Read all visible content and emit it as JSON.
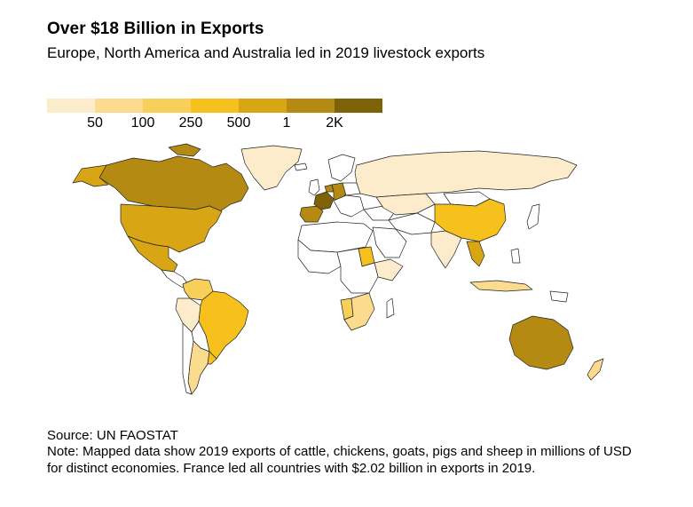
{
  "header": {
    "title": "Over $18 Billion in Exports",
    "subtitle": "Europe, North America and Australia led in 2019 livestock exports"
  },
  "legend": {
    "colors": [
      "#fdeccb",
      "#fbdc8e",
      "#f9cf5c",
      "#f7c11d",
      "#d8a515",
      "#b58a12",
      "#7d6208"
    ],
    "labels": [
      "50",
      "100",
      "250",
      "500",
      "1",
      "2K"
    ]
  },
  "map": {
    "unit": "millions of USD",
    "stroke_color": "#222222",
    "no_data_color": "#ffffff",
    "countries": [
      {
        "name": "Canada",
        "class": 5
      },
      {
        "name": "United States",
        "class": 4
      },
      {
        "name": "Mexico",
        "class": 4
      },
      {
        "name": "Greenland",
        "class": 0
      },
      {
        "name": "Brazil",
        "class": 3
      },
      {
        "name": "Argentina",
        "class": 1
      },
      {
        "name": "Uruguay",
        "class": 3
      },
      {
        "name": "Colombia",
        "class": 2
      },
      {
        "name": "Peru",
        "class": 0
      },
      {
        "name": "France",
        "class": 6
      },
      {
        "name": "Spain",
        "class": 5
      },
      {
        "name": "Germany",
        "class": 5
      },
      {
        "name": "Netherlands",
        "class": 5
      },
      {
        "name": "Russia",
        "class": 0
      },
      {
        "name": "China",
        "class": 3
      },
      {
        "name": "India",
        "class": 0
      },
      {
        "name": "Thailand",
        "class": 4
      },
      {
        "name": "Sudan",
        "class": 3
      },
      {
        "name": "Ethiopia",
        "class": 0
      },
      {
        "name": "Kazakhstan",
        "class": 0
      },
      {
        "name": "Australia",
        "class": 5
      },
      {
        "name": "New Zealand",
        "class": 1
      },
      {
        "name": "Indonesia",
        "class": 1
      },
      {
        "name": "Namibia",
        "class": 2
      },
      {
        "name": "South Africa",
        "class": 1
      }
    ]
  },
  "footer": {
    "source": "Source: UN FAOSTAT",
    "note": "Note: Mapped data show 2019 exports of cattle, chickens, goats, pigs and sheep in millions of USD for distinct economies. France led all countries with $2.02 billion in exports in 2019."
  }
}
